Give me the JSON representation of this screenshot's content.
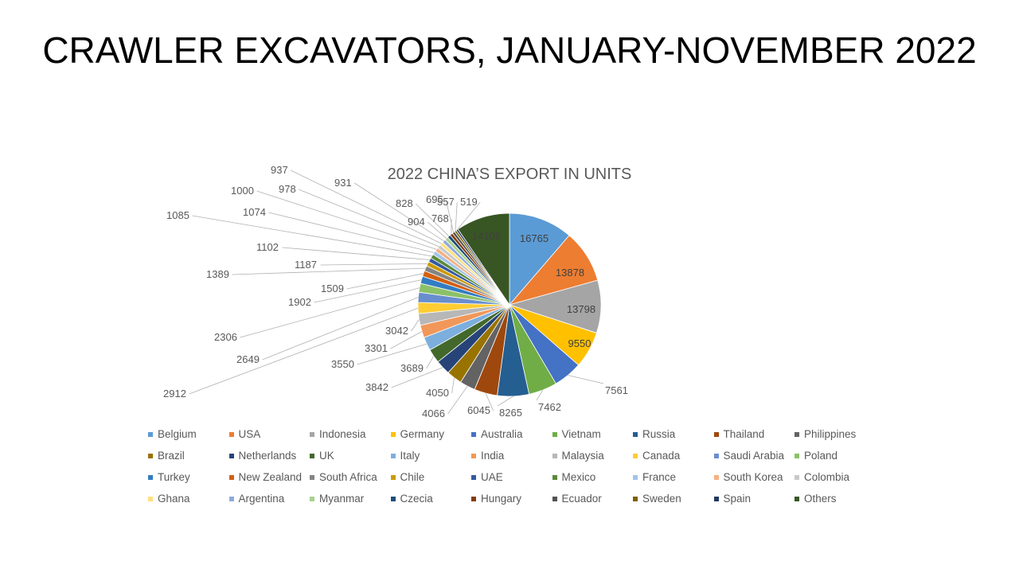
{
  "slide": {
    "title": "CRAWLER EXCAVATORS, JANUARY-NOVEMBER 2022"
  },
  "chart_data": {
    "type": "pie",
    "title": "2022 CHINA’S EXPORT IN UNITS",
    "legend_position": "bottom",
    "categories": [
      "Belgium",
      "USA",
      "Indonesia",
      "Germany",
      "Australia",
      "Vietnam",
      "Russia",
      "Thailand",
      "Philippines",
      "Brazil",
      "Netherlands",
      "UK",
      "Italy",
      "India",
      "Malaysia",
      "Canada",
      "Saudi Arabia",
      "Poland",
      "Turkey",
      "New Zealand",
      "South Africa",
      "Chile",
      "UAE",
      "Mexico",
      "France",
      "South Korea",
      "Colombia",
      "Ghana",
      "Argentina",
      "Myanmar",
      "Czecia",
      "Hungary",
      "Ecuador",
      "Sweden",
      "Spain",
      "Others"
    ],
    "values": [
      16765,
      13878,
      13798,
      9550,
      7561,
      7462,
      8265,
      6045,
      4066,
      4050,
      3842,
      3689,
      3550,
      3301,
      3042,
      2912,
      2649,
      2306,
      1902,
      1509,
      1389,
      1187,
      1102,
      1085,
      1074,
      1000,
      978,
      937,
      931,
      904,
      828,
      768,
      695,
      557,
      519,
      14109
    ],
    "colors": [
      "#5B9BD5",
      "#ED7D31",
      "#A5A5A5",
      "#FFC000",
      "#4472C4",
      "#70AD47",
      "#255E91",
      "#9E480E",
      "#636363",
      "#997300",
      "#264478",
      "#43682B",
      "#7CAFDD",
      "#F1975A",
      "#B7B7B7",
      "#FFCD33",
      "#698ED0",
      "#8CC168",
      "#327DC2",
      "#D26012",
      "#848484",
      "#CC9A00",
      "#335AA1",
      "#5A8A39",
      "#A3C4E8",
      "#F4B183",
      "#C9C9C9",
      "#FFE07F",
      "#8FAADC",
      "#A9D18E",
      "#1F4E79",
      "#843C0C",
      "#525252",
      "#7F6000",
      "#203864",
      "#375623"
    ]
  }
}
